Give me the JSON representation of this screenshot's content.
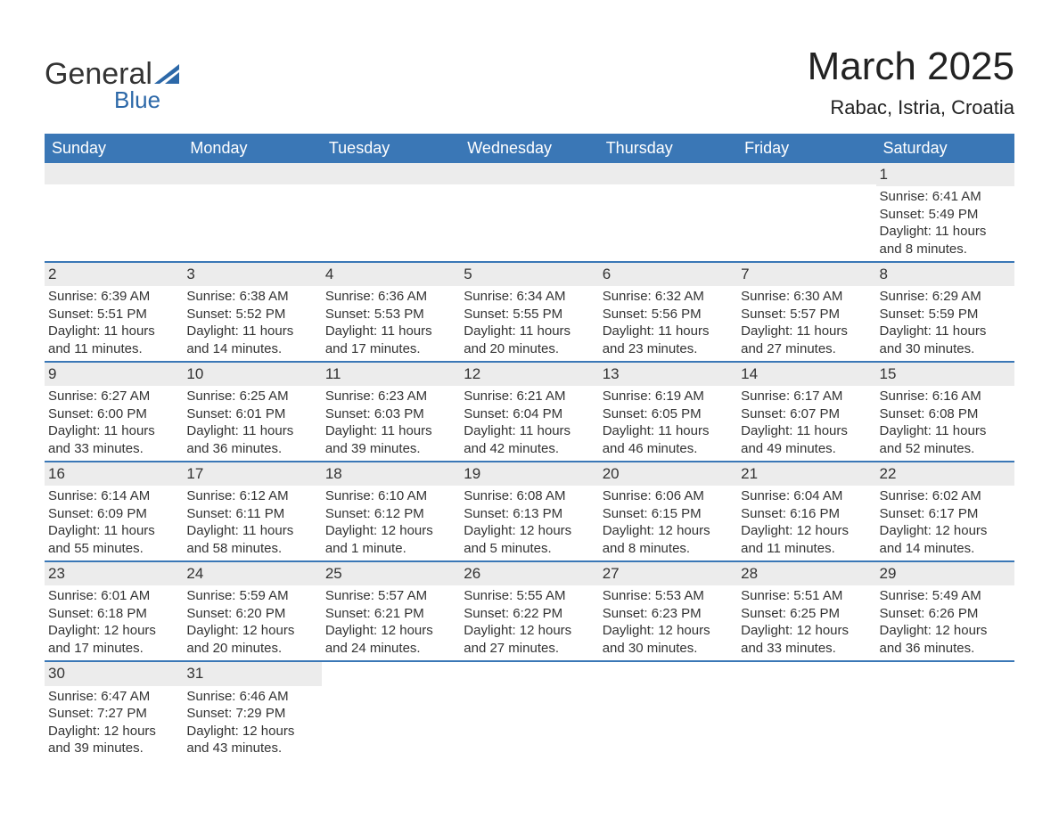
{
  "logo": {
    "text_general": "General",
    "text_blue": "Blue",
    "tri_color": "#2c68a8"
  },
  "header": {
    "title": "March 2025",
    "location": "Rabac, Istria, Croatia"
  },
  "styling": {
    "header_bg": "#3a77b6",
    "header_text": "#ffffff",
    "row_divider": "#3a77b6",
    "daynum_bg": "#ececec",
    "body_text": "#333333",
    "page_bg": "#ffffff",
    "title_fontsize": 44,
    "location_fontsize": 22,
    "weekday_fontsize": 18,
    "cell_fontsize": 15,
    "daynum_fontsize": 17
  },
  "weekdays": [
    "Sunday",
    "Monday",
    "Tuesday",
    "Wednesday",
    "Thursday",
    "Friday",
    "Saturday"
  ],
  "weeks": [
    [
      {
        "empty": true
      },
      {
        "empty": true
      },
      {
        "empty": true
      },
      {
        "empty": true
      },
      {
        "empty": true
      },
      {
        "empty": true
      },
      {
        "day": "1",
        "sunrise": "Sunrise: 6:41 AM",
        "sunset": "Sunset: 5:49 PM",
        "daylight": "Daylight: 11 hours and 8 minutes."
      }
    ],
    [
      {
        "day": "2",
        "sunrise": "Sunrise: 6:39 AM",
        "sunset": "Sunset: 5:51 PM",
        "daylight": "Daylight: 11 hours and 11 minutes."
      },
      {
        "day": "3",
        "sunrise": "Sunrise: 6:38 AM",
        "sunset": "Sunset: 5:52 PM",
        "daylight": "Daylight: 11 hours and 14 minutes."
      },
      {
        "day": "4",
        "sunrise": "Sunrise: 6:36 AM",
        "sunset": "Sunset: 5:53 PM",
        "daylight": "Daylight: 11 hours and 17 minutes."
      },
      {
        "day": "5",
        "sunrise": "Sunrise: 6:34 AM",
        "sunset": "Sunset: 5:55 PM",
        "daylight": "Daylight: 11 hours and 20 minutes."
      },
      {
        "day": "6",
        "sunrise": "Sunrise: 6:32 AM",
        "sunset": "Sunset: 5:56 PM",
        "daylight": "Daylight: 11 hours and 23 minutes."
      },
      {
        "day": "7",
        "sunrise": "Sunrise: 6:30 AM",
        "sunset": "Sunset: 5:57 PM",
        "daylight": "Daylight: 11 hours and 27 minutes."
      },
      {
        "day": "8",
        "sunrise": "Sunrise: 6:29 AM",
        "sunset": "Sunset: 5:59 PM",
        "daylight": "Daylight: 11 hours and 30 minutes."
      }
    ],
    [
      {
        "day": "9",
        "sunrise": "Sunrise: 6:27 AM",
        "sunset": "Sunset: 6:00 PM",
        "daylight": "Daylight: 11 hours and 33 minutes."
      },
      {
        "day": "10",
        "sunrise": "Sunrise: 6:25 AM",
        "sunset": "Sunset: 6:01 PM",
        "daylight": "Daylight: 11 hours and 36 minutes."
      },
      {
        "day": "11",
        "sunrise": "Sunrise: 6:23 AM",
        "sunset": "Sunset: 6:03 PM",
        "daylight": "Daylight: 11 hours and 39 minutes."
      },
      {
        "day": "12",
        "sunrise": "Sunrise: 6:21 AM",
        "sunset": "Sunset: 6:04 PM",
        "daylight": "Daylight: 11 hours and 42 minutes."
      },
      {
        "day": "13",
        "sunrise": "Sunrise: 6:19 AM",
        "sunset": "Sunset: 6:05 PM",
        "daylight": "Daylight: 11 hours and 46 minutes."
      },
      {
        "day": "14",
        "sunrise": "Sunrise: 6:17 AM",
        "sunset": "Sunset: 6:07 PM",
        "daylight": "Daylight: 11 hours and 49 minutes."
      },
      {
        "day": "15",
        "sunrise": "Sunrise: 6:16 AM",
        "sunset": "Sunset: 6:08 PM",
        "daylight": "Daylight: 11 hours and 52 minutes."
      }
    ],
    [
      {
        "day": "16",
        "sunrise": "Sunrise: 6:14 AM",
        "sunset": "Sunset: 6:09 PM",
        "daylight": "Daylight: 11 hours and 55 minutes."
      },
      {
        "day": "17",
        "sunrise": "Sunrise: 6:12 AM",
        "sunset": "Sunset: 6:11 PM",
        "daylight": "Daylight: 11 hours and 58 minutes."
      },
      {
        "day": "18",
        "sunrise": "Sunrise: 6:10 AM",
        "sunset": "Sunset: 6:12 PM",
        "daylight": "Daylight: 12 hours and 1 minute."
      },
      {
        "day": "19",
        "sunrise": "Sunrise: 6:08 AM",
        "sunset": "Sunset: 6:13 PM",
        "daylight": "Daylight: 12 hours and 5 minutes."
      },
      {
        "day": "20",
        "sunrise": "Sunrise: 6:06 AM",
        "sunset": "Sunset: 6:15 PM",
        "daylight": "Daylight: 12 hours and 8 minutes."
      },
      {
        "day": "21",
        "sunrise": "Sunrise: 6:04 AM",
        "sunset": "Sunset: 6:16 PM",
        "daylight": "Daylight: 12 hours and 11 minutes."
      },
      {
        "day": "22",
        "sunrise": "Sunrise: 6:02 AM",
        "sunset": "Sunset: 6:17 PM",
        "daylight": "Daylight: 12 hours and 14 minutes."
      }
    ],
    [
      {
        "day": "23",
        "sunrise": "Sunrise: 6:01 AM",
        "sunset": "Sunset: 6:18 PM",
        "daylight": "Daylight: 12 hours and 17 minutes."
      },
      {
        "day": "24",
        "sunrise": "Sunrise: 5:59 AM",
        "sunset": "Sunset: 6:20 PM",
        "daylight": "Daylight: 12 hours and 20 minutes."
      },
      {
        "day": "25",
        "sunrise": "Sunrise: 5:57 AM",
        "sunset": "Sunset: 6:21 PM",
        "daylight": "Daylight: 12 hours and 24 minutes."
      },
      {
        "day": "26",
        "sunrise": "Sunrise: 5:55 AM",
        "sunset": "Sunset: 6:22 PM",
        "daylight": "Daylight: 12 hours and 27 minutes."
      },
      {
        "day": "27",
        "sunrise": "Sunrise: 5:53 AM",
        "sunset": "Sunset: 6:23 PM",
        "daylight": "Daylight: 12 hours and 30 minutes."
      },
      {
        "day": "28",
        "sunrise": "Sunrise: 5:51 AM",
        "sunset": "Sunset: 6:25 PM",
        "daylight": "Daylight: 12 hours and 33 minutes."
      },
      {
        "day": "29",
        "sunrise": "Sunrise: 5:49 AM",
        "sunset": "Sunset: 6:26 PM",
        "daylight": "Daylight: 12 hours and 36 minutes."
      }
    ],
    [
      {
        "day": "30",
        "sunrise": "Sunrise: 6:47 AM",
        "sunset": "Sunset: 7:27 PM",
        "daylight": "Daylight: 12 hours and 39 minutes."
      },
      {
        "day": "31",
        "sunrise": "Sunrise: 6:46 AM",
        "sunset": "Sunset: 7:29 PM",
        "daylight": "Daylight: 12 hours and 43 minutes."
      },
      {
        "blank": true
      },
      {
        "blank": true
      },
      {
        "blank": true
      },
      {
        "blank": true
      },
      {
        "blank": true
      }
    ]
  ]
}
